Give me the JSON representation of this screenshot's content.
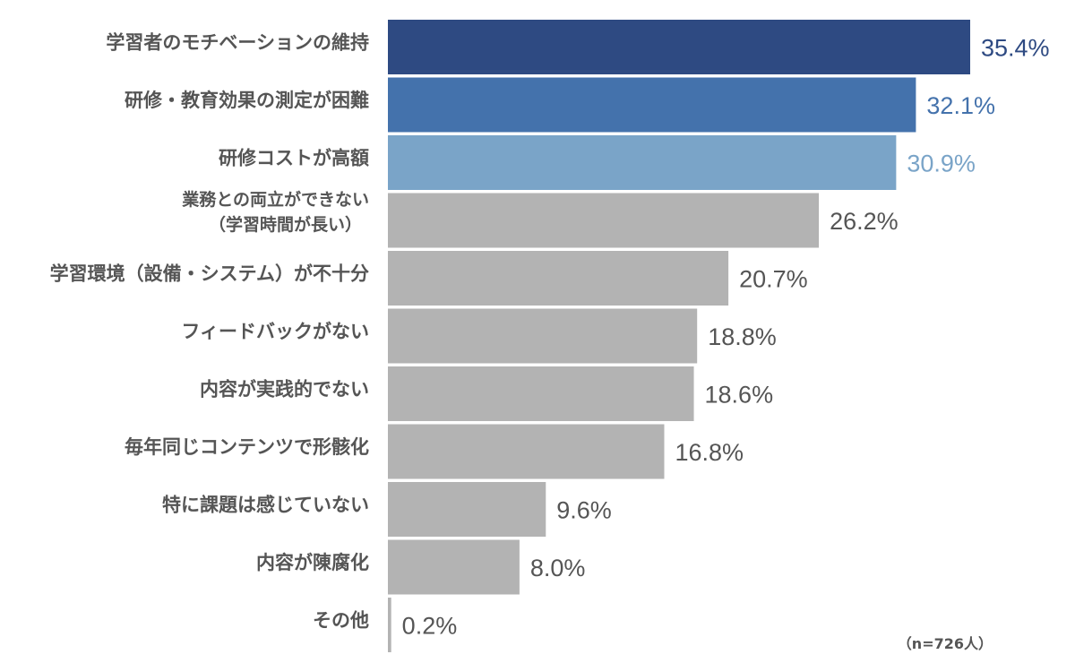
{
  "chart_data": {
    "type": "bar",
    "orientation": "horizontal",
    "title": "",
    "xlabel": "",
    "ylabel": "",
    "unit": "%",
    "xlim": [
      0,
      35.4
    ],
    "grid": false,
    "categories": [
      "学習者のモチベーションの維持",
      "研修・教育効果の測定が困難",
      "研修コストが高額",
      "業務との両立ができない\n（学習時間が長い）",
      "学習環境（設備・システム）が不十分",
      "フィードバックがない",
      "内容が実践的でない",
      "毎年同じコンテンツで形骸化",
      "特に課題は感じていない",
      "内容が陳腐化",
      "その他"
    ],
    "values": [
      35.4,
      32.1,
      30.9,
      26.2,
      20.7,
      18.8,
      18.6,
      16.8,
      9.6,
      8.0,
      0.2
    ],
    "value_labels": [
      "35.4%",
      "32.1%",
      "30.9%",
      "26.2%",
      "20.7%",
      "18.8%",
      "18.6%",
      "16.8%",
      "9.6%",
      "8.0%",
      "0.2%"
    ],
    "colors": [
      "#2e4a82",
      "#4472ac",
      "#7aa4c8",
      "#b3b3b3",
      "#b3b3b3",
      "#b3b3b3",
      "#b3b3b3",
      "#b3b3b3",
      "#b3b3b3",
      "#b3b3b3",
      "#b3b3b3"
    ],
    "label_colors": [
      "#2e4a82",
      "#4472ac",
      "#7aa4c8",
      "#555555",
      "#555555",
      "#555555",
      "#555555",
      "#555555",
      "#555555",
      "#555555",
      "#555555"
    ],
    "note": "（n=726人）"
  }
}
